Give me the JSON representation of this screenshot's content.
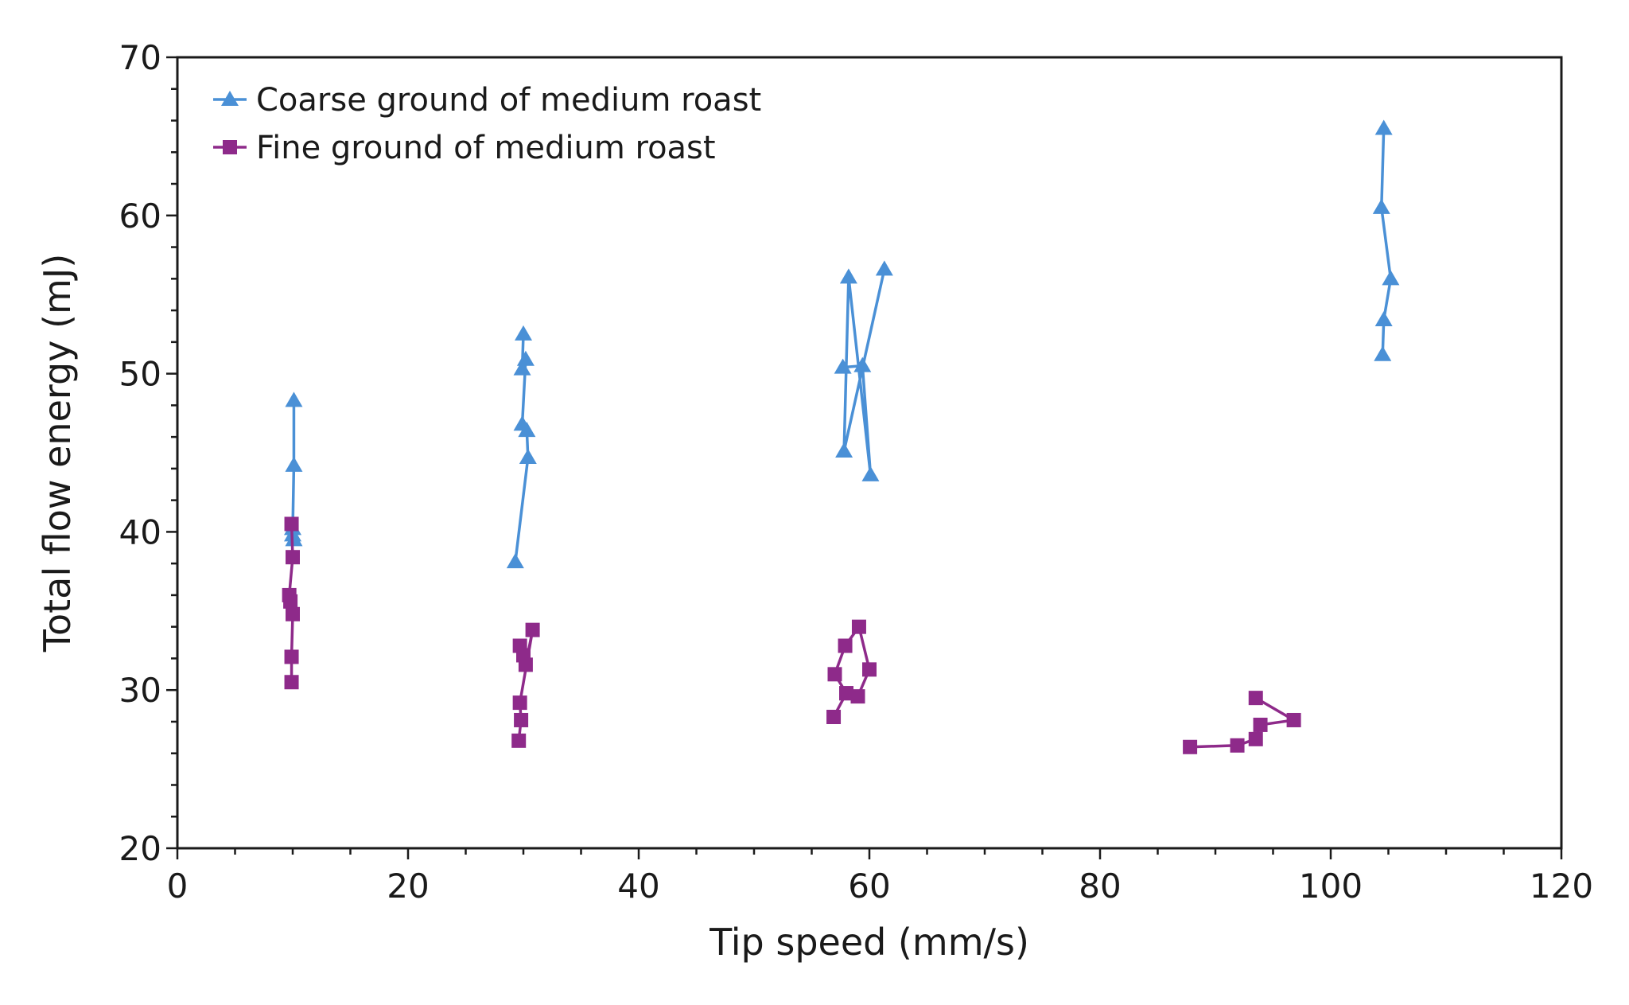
{
  "chart_data": {
    "type": "line",
    "title": "",
    "xlabel": "Tip speed (mm/s)",
    "ylabel": "Total flow energy (mJ)",
    "xlim": [
      0,
      120
    ],
    "ylim": [
      20,
      70
    ],
    "xticks": [
      0,
      20,
      40,
      60,
      80,
      100,
      120
    ],
    "yticks": [
      20,
      30,
      40,
      50,
      60,
      70
    ],
    "grid": false,
    "legend_position": "top-left",
    "series": [
      {
        "name": "Coarse ground of medium roast",
        "color": "#4a90d6",
        "marker": "triangle",
        "groups": [
          [
            [
              10.1,
              48.3
            ],
            [
              10.1,
              44.2
            ],
            [
              10.0,
              40.2
            ],
            [
              10.0,
              39.8
            ],
            [
              10.1,
              39.5
            ]
          ],
          [
            [
              29.3,
              38.1
            ],
            [
              30.4,
              44.7
            ],
            [
              30.3,
              46.4
            ],
            [
              29.9,
              46.8
            ],
            [
              30.2,
              50.9
            ],
            [
              29.9,
              50.3
            ],
            [
              30.0,
              52.5
            ]
          ],
          [
            [
              57.7,
              50.4
            ],
            [
              59.4,
              50.5
            ],
            [
              60.1,
              43.6
            ],
            [
              58.2,
              56.1
            ],
            [
              57.8,
              45.1
            ],
            [
              61.3,
              56.6
            ]
          ],
          [
            [
              104.6,
              65.5
            ],
            [
              104.4,
              60.5
            ],
            [
              105.2,
              56.0
            ],
            [
              104.6,
              53.4
            ],
            [
              104.5,
              51.2
            ]
          ]
        ]
      },
      {
        "name": "Fine ground of medium roast",
        "color": "#8e2a8a",
        "marker": "square",
        "groups": [
          [
            [
              9.9,
              40.5
            ],
            [
              10.0,
              38.4
            ],
            [
              9.7,
              36.0
            ],
            [
              9.8,
              35.6
            ],
            [
              10.0,
              34.8
            ],
            [
              9.9,
              32.1
            ],
            [
              9.9,
              30.5
            ]
          ],
          [
            [
              29.6,
              26.8
            ],
            [
              29.8,
              28.1
            ],
            [
              29.7,
              29.2
            ],
            [
              30.8,
              33.8
            ],
            [
              30.2,
              31.6
            ],
            [
              30.0,
              32.2
            ],
            [
              29.7,
              32.8
            ]
          ],
          [
            [
              56.9,
              28.3
            ],
            [
              58.0,
              29.8
            ],
            [
              57.0,
              31.0
            ],
            [
              57.9,
              32.8
            ],
            [
              59.1,
              34.0
            ],
            [
              60.0,
              31.3
            ],
            [
              59.0,
              29.6
            ],
            [
              58.0,
              29.8
            ]
          ],
          [
            [
              87.8,
              26.4
            ],
            [
              91.9,
              26.5
            ],
            [
              93.5,
              26.9
            ],
            [
              93.9,
              27.8
            ],
            [
              96.8,
              28.1
            ],
            [
              93.5,
              29.5
            ]
          ]
        ]
      }
    ]
  }
}
